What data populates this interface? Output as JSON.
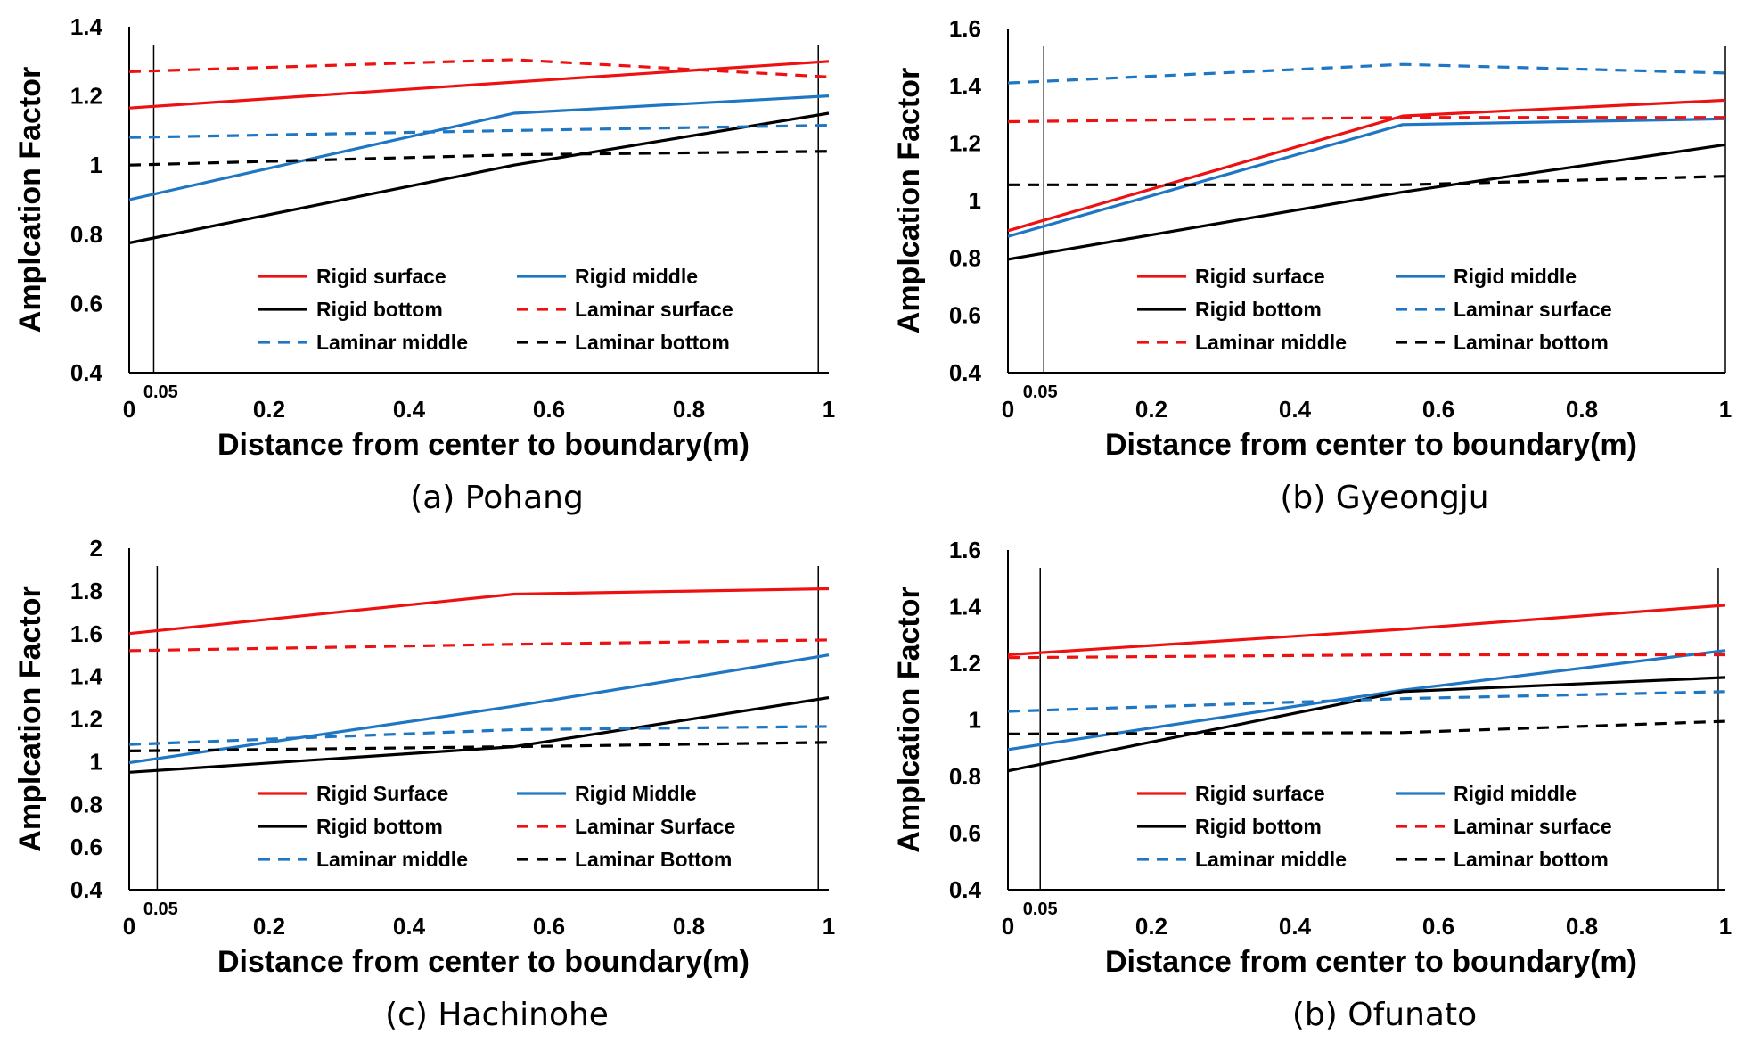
{
  "chart_data": [
    {
      "type": "line",
      "caption": "(a) Pohang",
      "xlabel": "Distance from center to boundary(m)",
      "ylabel": "Amplcation Factor",
      "xlim": [
        0,
        1
      ],
      "ylim": [
        0.4,
        1.4
      ],
      "xticks": [
        "0",
        "0.2",
        "0.4",
        "0.6",
        "0.8",
        "1"
      ],
      "yticks": [
        "0.4",
        "0.6",
        "0.8",
        "1",
        "1.2",
        "1.4"
      ],
      "annotation": "0.05",
      "vlines": [
        0.035,
        0.985
      ],
      "series": [
        {
          "name": "Rigid surface",
          "color": "#ee1111",
          "dash": false,
          "x": [
            0,
            0.55,
            1
          ],
          "y": [
            1.165,
            1.24,
            1.3
          ]
        },
        {
          "name": "Rigid middle",
          "color": "#1f77c4",
          "dash": false,
          "x": [
            0,
            0.55,
            1
          ],
          "y": [
            0.9,
            1.15,
            1.2
          ]
        },
        {
          "name": "Rigid bottom",
          "color": "#000000",
          "dash": false,
          "x": [
            0,
            0.55,
            1
          ],
          "y": [
            0.775,
            1.0,
            1.15
          ]
        },
        {
          "name": "Laminar surface",
          "color": "#ee1111",
          "dash": true,
          "x": [
            0,
            0.55,
            1
          ],
          "y": [
            1.27,
            1.305,
            1.255
          ]
        },
        {
          "name": "Laminar middle",
          "color": "#1f77c4",
          "dash": true,
          "x": [
            0,
            0.55,
            1
          ],
          "y": [
            1.08,
            1.1,
            1.115
          ]
        },
        {
          "name": "Laminar bottom",
          "color": "#000000",
          "dash": true,
          "x": [
            0,
            0.55,
            1
          ],
          "y": [
            1.0,
            1.03,
            1.04
          ]
        }
      ]
    },
    {
      "type": "line",
      "caption": "(b) Gyeongju",
      "xlabel": "Distance from center to boundary(m)",
      "ylabel": "Amplcation Factor",
      "xlim": [
        0,
        1
      ],
      "ylim": [
        0.4,
        1.6
      ],
      "xticks": [
        "0",
        "0.2",
        "0.4",
        "0.6",
        "0.8",
        "1"
      ],
      "yticks": [
        "0.4",
        "0.6",
        "0.8",
        "1",
        "1.2",
        "1.4",
        "1.6"
      ],
      "annotation": "0.05",
      "vlines": [
        0.05,
        1.0
      ],
      "series": [
        {
          "name": "Rigid surface",
          "color": "#ee1111",
          "dash": false,
          "x": [
            0,
            0.55,
            1
          ],
          "y": [
            0.895,
            1.295,
            1.35
          ]
        },
        {
          "name": "Rigid middle",
          "color": "#1f77c4",
          "dash": false,
          "x": [
            0,
            0.55,
            1
          ],
          "y": [
            0.875,
            1.265,
            1.285
          ]
        },
        {
          "name": "Rigid bottom",
          "color": "#000000",
          "dash": false,
          "x": [
            0,
            0.55,
            1
          ],
          "y": [
            0.795,
            1.03,
            1.195
          ]
        },
        {
          "name": "Laminar surface",
          "color": "#1f77c4",
          "dash": true,
          "x": [
            0,
            0.55,
            1
          ],
          "y": [
            1.41,
            1.475,
            1.445
          ]
        },
        {
          "name": "Laminar middle",
          "color": "#ee1111",
          "dash": true,
          "x": [
            0,
            0.55,
            1
          ],
          "y": [
            1.275,
            1.29,
            1.29
          ]
        },
        {
          "name": "Laminar bottom",
          "color": "#000000",
          "dash": true,
          "x": [
            0,
            0.55,
            1
          ],
          "y": [
            1.055,
            1.055,
            1.085
          ]
        }
      ]
    },
    {
      "type": "line",
      "caption": "(c) Hachinohe",
      "xlabel": "Distance from center to boundary(m)",
      "ylabel": "Amplcation Factor",
      "xlim": [
        0,
        1
      ],
      "ylim": [
        0.4,
        2.0
      ],
      "xticks": [
        "0",
        "0.2",
        "0.4",
        "0.6",
        "0.8",
        "1"
      ],
      "yticks": [
        "0.4",
        "0.6",
        "0.8",
        "1",
        "1.2",
        "1.4",
        "1.6",
        "1.8",
        "2"
      ],
      "annotation": "0.05",
      "vlines": [
        0.04,
        0.985
      ],
      "series": [
        {
          "name": "Rigid Surface",
          "color": "#ee1111",
          "dash": false,
          "x": [
            0,
            0.55,
            1
          ],
          "y": [
            1.6,
            1.785,
            1.81
          ]
        },
        {
          "name": "Rigid Middle",
          "color": "#1f77c4",
          "dash": false,
          "x": [
            0,
            0.55,
            1
          ],
          "y": [
            0.995,
            1.26,
            1.5
          ]
        },
        {
          "name": "Rigid bottom",
          "color": "#000000",
          "dash": false,
          "x": [
            0,
            0.55,
            1
          ],
          "y": [
            0.95,
            1.07,
            1.3
          ]
        },
        {
          "name": "Laminar Surface",
          "color": "#ee1111",
          "dash": true,
          "x": [
            0,
            0.55,
            1
          ],
          "y": [
            1.52,
            1.55,
            1.57
          ]
        },
        {
          "name": "Laminar middle",
          "color": "#1f77c4",
          "dash": true,
          "x": [
            0,
            0.55,
            1
          ],
          "y": [
            1.08,
            1.15,
            1.165
          ]
        },
        {
          "name": "Laminar Bottom",
          "color": "#000000",
          "dash": true,
          "x": [
            0,
            0.55,
            1
          ],
          "y": [
            1.05,
            1.07,
            1.09
          ]
        }
      ]
    },
    {
      "type": "line",
      "caption": "(b) Ofunato",
      "xlabel": "Distance from center to boundary(m)",
      "ylabel": "Amplcation Factor",
      "xlim": [
        0,
        1
      ],
      "ylim": [
        0.4,
        1.6
      ],
      "xticks": [
        "0",
        "0.2",
        "0.4",
        "0.6",
        "0.8",
        "1"
      ],
      "yticks": [
        "0.4",
        "0.6",
        "0.8",
        "1",
        "1.2",
        "1.4",
        "1.6"
      ],
      "annotation": "0.05",
      "vlines": [
        0.045,
        0.99
      ],
      "series": [
        {
          "name": "Rigid surface",
          "color": "#ee1111",
          "dash": false,
          "x": [
            0,
            0.55,
            1
          ],
          "y": [
            1.23,
            1.32,
            1.405
          ]
        },
        {
          "name": "Rigid middle",
          "color": "#1f77c4",
          "dash": false,
          "x": [
            0,
            0.55,
            1
          ],
          "y": [
            0.895,
            1.105,
            1.245
          ]
        },
        {
          "name": "Rigid bottom",
          "color": "#000000",
          "dash": false,
          "x": [
            0,
            0.55,
            1
          ],
          "y": [
            0.82,
            1.1,
            1.15
          ]
        },
        {
          "name": "Laminar surface",
          "color": "#ee1111",
          "dash": true,
          "x": [
            0,
            0.55,
            1
          ],
          "y": [
            1.22,
            1.23,
            1.23
          ]
        },
        {
          "name": "Laminar middle",
          "color": "#1f77c4",
          "dash": true,
          "x": [
            0,
            0.55,
            1
          ],
          "y": [
            1.03,
            1.075,
            1.1
          ]
        },
        {
          "name": "Laminar bottom",
          "color": "#000000",
          "dash": true,
          "x": [
            0,
            0.55,
            1
          ],
          "y": [
            0.95,
            0.955,
            0.995
          ]
        }
      ]
    }
  ]
}
